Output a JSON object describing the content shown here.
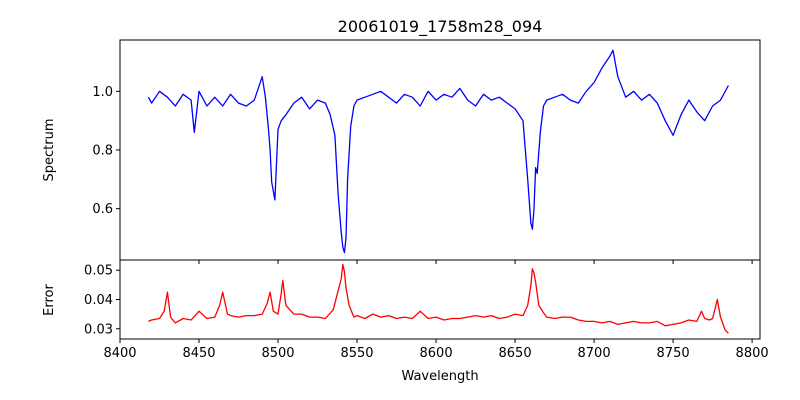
{
  "chart_data": [
    {
      "type": "line",
      "title": "20061019_1758m28_094",
      "xlabel": "",
      "ylabel": "Spectrum",
      "xlim": [
        8400,
        8805
      ],
      "ylim": [
        0.425,
        1.175
      ],
      "xticks": [
        8400,
        8450,
        8500,
        8550,
        8600,
        8650,
        8700,
        8750,
        8800
      ],
      "yticks": [
        0.6,
        0.8,
        1.0
      ],
      "ytick_labels": [
        "0.6",
        "0.8",
        "1.0"
      ],
      "show_xtick_labels": false,
      "grid": false,
      "series": [
        {
          "color": "#0000ff",
          "x": [
            8418,
            8420,
            8425,
            8430,
            8435,
            8440,
            8445,
            8447,
            8450,
            8455,
            8460,
            8465,
            8470,
            8475,
            8480,
            8485,
            8490,
            8492,
            8494,
            8495,
            8496,
            8497,
            8498,
            8500,
            8502,
            8505,
            8510,
            8515,
            8520,
            8525,
            8530,
            8533,
            8536,
            8538,
            8540,
            8541,
            8542,
            8543,
            8544,
            8546,
            8548,
            8550,
            8555,
            8560,
            8565,
            8570,
            8575,
            8580,
            8585,
            8590,
            8595,
            8600,
            8605,
            8610,
            8615,
            8620,
            8625,
            8630,
            8635,
            8640,
            8645,
            8650,
            8655,
            8658,
            8660,
            8661,
            8662,
            8663,
            8664,
            8666,
            8668,
            8670,
            8675,
            8680,
            8685,
            8690,
            8695,
            8700,
            8705,
            8710,
            8712,
            8715,
            8720,
            8725,
            8730,
            8735,
            8740,
            8745,
            8750,
            8755,
            8760,
            8765,
            8770,
            8775,
            8780,
            8785
          ],
          "y": [
            0.98,
            0.96,
            1.0,
            0.98,
            0.95,
            0.99,
            0.97,
            0.86,
            1.0,
            0.95,
            0.98,
            0.95,
            0.99,
            0.96,
            0.95,
            0.97,
            1.05,
            0.98,
            0.87,
            0.8,
            0.69,
            0.66,
            0.63,
            0.87,
            0.9,
            0.92,
            0.96,
            0.98,
            0.94,
            0.97,
            0.96,
            0.92,
            0.85,
            0.65,
            0.52,
            0.47,
            0.45,
            0.5,
            0.7,
            0.88,
            0.95,
            0.97,
            0.98,
            0.99,
            1.0,
            0.98,
            0.96,
            0.99,
            0.98,
            0.95,
            1.0,
            0.97,
            0.99,
            0.98,
            1.01,
            0.97,
            0.95,
            0.99,
            0.97,
            0.98,
            0.96,
            0.94,
            0.9,
            0.7,
            0.55,
            0.53,
            0.6,
            0.74,
            0.72,
            0.86,
            0.95,
            0.97,
            0.98,
            0.99,
            0.97,
            0.96,
            1.0,
            1.03,
            1.08,
            1.12,
            1.14,
            1.05,
            0.98,
            1.0,
            0.97,
            0.99,
            0.96,
            0.9,
            0.85,
            0.92,
            0.97,
            0.93,
            0.9,
            0.95,
            0.97,
            1.02
          ]
        }
      ]
    },
    {
      "type": "line",
      "title": "",
      "xlabel": "Wavelength",
      "ylabel": "Error",
      "xlim": [
        8400,
        8805
      ],
      "ylim": [
        0.0265,
        0.0535
      ],
      "xticks": [
        8400,
        8450,
        8500,
        8550,
        8600,
        8650,
        8700,
        8750,
        8800
      ],
      "xtick_labels": [
        "8400",
        "8450",
        "8500",
        "8550",
        "8600",
        "8650",
        "8700",
        "8750",
        "8800"
      ],
      "yticks": [
        0.03,
        0.04,
        0.05
      ],
      "ytick_labels": [
        "0.03",
        "0.04",
        "0.05"
      ],
      "grid": false,
      "series": [
        {
          "color": "#ff0000",
          "x": [
            8418,
            8420,
            8425,
            8428,
            8430,
            8432,
            8435,
            8440,
            8445,
            8450,
            8455,
            8460,
            8463,
            8465,
            8468,
            8470,
            8475,
            8480,
            8485,
            8490,
            8493,
            8495,
            8497,
            8500,
            8502,
            8503,
            8505,
            8510,
            8515,
            8520,
            8525,
            8530,
            8535,
            8538,
            8540,
            8541,
            8542,
            8543,
            8545,
            8548,
            8550,
            8555,
            8560,
            8565,
            8570,
            8575,
            8580,
            8585,
            8590,
            8595,
            8600,
            8605,
            8610,
            8615,
            8620,
            8625,
            8630,
            8635,
            8640,
            8645,
            8650,
            8655,
            8658,
            8660,
            8661,
            8662,
            8663,
            8665,
            8668,
            8670,
            8675,
            8680,
            8685,
            8690,
            8695,
            8700,
            8705,
            8710,
            8715,
            8720,
            8725,
            8730,
            8735,
            8740,
            8745,
            8750,
            8755,
            8760,
            8765,
            8768,
            8770,
            8773,
            8775,
            8778,
            8780,
            8783,
            8785
          ],
          "y": [
            0.0325,
            0.033,
            0.0335,
            0.036,
            0.0425,
            0.034,
            0.032,
            0.0335,
            0.033,
            0.036,
            0.0335,
            0.034,
            0.038,
            0.0425,
            0.035,
            0.0345,
            0.034,
            0.0345,
            0.0345,
            0.035,
            0.0385,
            0.0425,
            0.036,
            0.035,
            0.042,
            0.0465,
            0.038,
            0.035,
            0.035,
            0.034,
            0.034,
            0.0335,
            0.0365,
            0.043,
            0.047,
            0.052,
            0.0495,
            0.044,
            0.038,
            0.034,
            0.0345,
            0.0335,
            0.035,
            0.034,
            0.0345,
            0.0335,
            0.034,
            0.0335,
            0.036,
            0.0335,
            0.034,
            0.033,
            0.0335,
            0.0335,
            0.034,
            0.0345,
            0.034,
            0.0345,
            0.0335,
            0.034,
            0.035,
            0.0345,
            0.038,
            0.045,
            0.0505,
            0.049,
            0.046,
            0.038,
            0.0355,
            0.034,
            0.0335,
            0.034,
            0.034,
            0.033,
            0.0325,
            0.0325,
            0.032,
            0.0325,
            0.0315,
            0.032,
            0.0325,
            0.032,
            0.032,
            0.0325,
            0.031,
            0.0315,
            0.032,
            0.033,
            0.0325,
            0.036,
            0.0335,
            0.033,
            0.0335,
            0.04,
            0.034,
            0.0295,
            0.0285
          ]
        }
      ]
    }
  ]
}
